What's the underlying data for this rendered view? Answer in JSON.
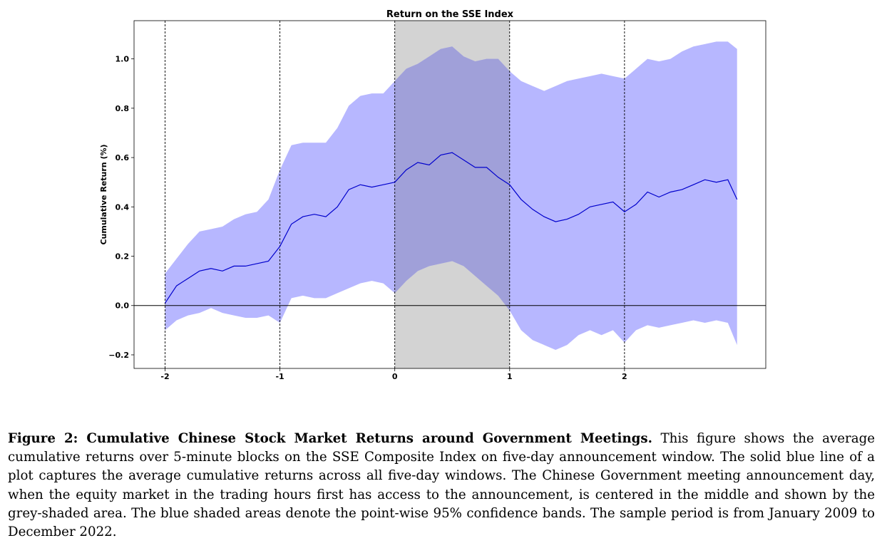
{
  "chart_data": {
    "type": "line",
    "title": "Return on the SSE Index",
    "xlabel": "",
    "ylabel": "Cumulative Return (%)",
    "xlim": [
      -2.27,
      3.23
    ],
    "ylim": [
      -0.255,
      1.155
    ],
    "x_ticks": [
      "-2",
      "-1",
      "0",
      "1",
      "2"
    ],
    "y_ticks": [
      "−0.2",
      "0.0",
      "0.2",
      "0.4",
      "0.6",
      "0.8",
      "1.0"
    ],
    "vertical_lines_x": [
      -2,
      -1,
      0,
      1,
      2
    ],
    "horizontal_line_y": 0,
    "shaded_region_x": [
      0,
      1
    ],
    "grid": false,
    "series": [
      {
        "x": [
          -2.0,
          -1.9,
          -1.8,
          -1.7,
          -1.6,
          -1.5,
          -1.4,
          -1.3,
          -1.2,
          -1.1,
          -1.0,
          -0.9,
          -0.8,
          -0.7,
          -0.6,
          -0.5,
          -0.4,
          -0.3,
          -0.2,
          -0.1,
          0.0,
          0.1,
          0.2,
          0.3,
          0.4,
          0.5,
          0.6,
          0.7,
          0.8,
          0.9,
          1.0,
          1.1,
          1.2,
          1.3,
          1.4,
          1.5,
          1.6,
          1.7,
          1.8,
          1.9,
          2.0,
          2.1,
          2.2,
          2.3,
          2.4,
          2.5,
          2.6,
          2.7,
          2.8,
          2.9,
          2.98
        ],
        "mean": [
          0.01,
          0.08,
          0.11,
          0.14,
          0.15,
          0.14,
          0.16,
          0.16,
          0.17,
          0.18,
          0.24,
          0.33,
          0.36,
          0.37,
          0.36,
          0.4,
          0.47,
          0.49,
          0.48,
          0.49,
          0.5,
          0.55,
          0.58,
          0.57,
          0.61,
          0.62,
          0.59,
          0.56,
          0.56,
          0.52,
          0.49,
          0.43,
          0.39,
          0.36,
          0.34,
          0.35,
          0.37,
          0.4,
          0.41,
          0.42,
          0.38,
          0.41,
          0.46,
          0.44,
          0.46,
          0.47,
          0.49,
          0.51,
          0.5,
          0.51,
          0.43
        ],
        "upper": [
          0.13,
          0.19,
          0.25,
          0.3,
          0.31,
          0.32,
          0.35,
          0.37,
          0.38,
          0.43,
          0.55,
          0.65,
          0.66,
          0.66,
          0.66,
          0.72,
          0.81,
          0.85,
          0.86,
          0.86,
          0.91,
          0.96,
          0.98,
          1.01,
          1.04,
          1.05,
          1.01,
          0.99,
          1.0,
          1.0,
          0.95,
          0.91,
          0.89,
          0.87,
          0.89,
          0.91,
          0.92,
          0.93,
          0.94,
          0.93,
          0.92,
          0.96,
          1.0,
          0.99,
          1.0,
          1.03,
          1.05,
          1.06,
          1.07,
          1.07,
          1.04
        ],
        "lower": [
          -0.1,
          -0.06,
          -0.04,
          -0.03,
          -0.01,
          -0.03,
          -0.04,
          -0.05,
          -0.05,
          -0.04,
          -0.07,
          0.03,
          0.04,
          0.03,
          0.03,
          0.05,
          0.07,
          0.09,
          0.1,
          0.09,
          0.05,
          0.1,
          0.14,
          0.16,
          0.17,
          0.18,
          0.16,
          0.12,
          0.08,
          0.04,
          -0.02,
          -0.1,
          -0.14,
          -0.16,
          -0.18,
          -0.16,
          -0.12,
          -0.1,
          -0.12,
          -0.1,
          -0.15,
          -0.1,
          -0.08,
          -0.09,
          -0.08,
          -0.07,
          -0.06,
          -0.07,
          -0.06,
          -0.07,
          -0.16
        ]
      }
    ],
    "colors": {
      "line": "#0000cc",
      "band": "#aaaaff",
      "shade": "#d3d3d3",
      "band_over_shade": "#a0a0d9"
    }
  },
  "caption": {
    "label": "Figure 2: Cumulative Chinese Stock Market Returns around Government Meetings.",
    "text": " This figure shows the average cumulative returns over 5-minute blocks on the SSE Composite Index on five-day announcement window. The solid blue line of a plot captures the average cumulative returns across all five-day windows. The Chinese Government meeting announcement day, when the equity market in the trading hours first has access to the announcement, is centered in the middle and shown by the grey-shaded area. The blue shaded areas denote the point-wise 95% confidence bands. The sample period is from January 2009 to December 2022."
  }
}
